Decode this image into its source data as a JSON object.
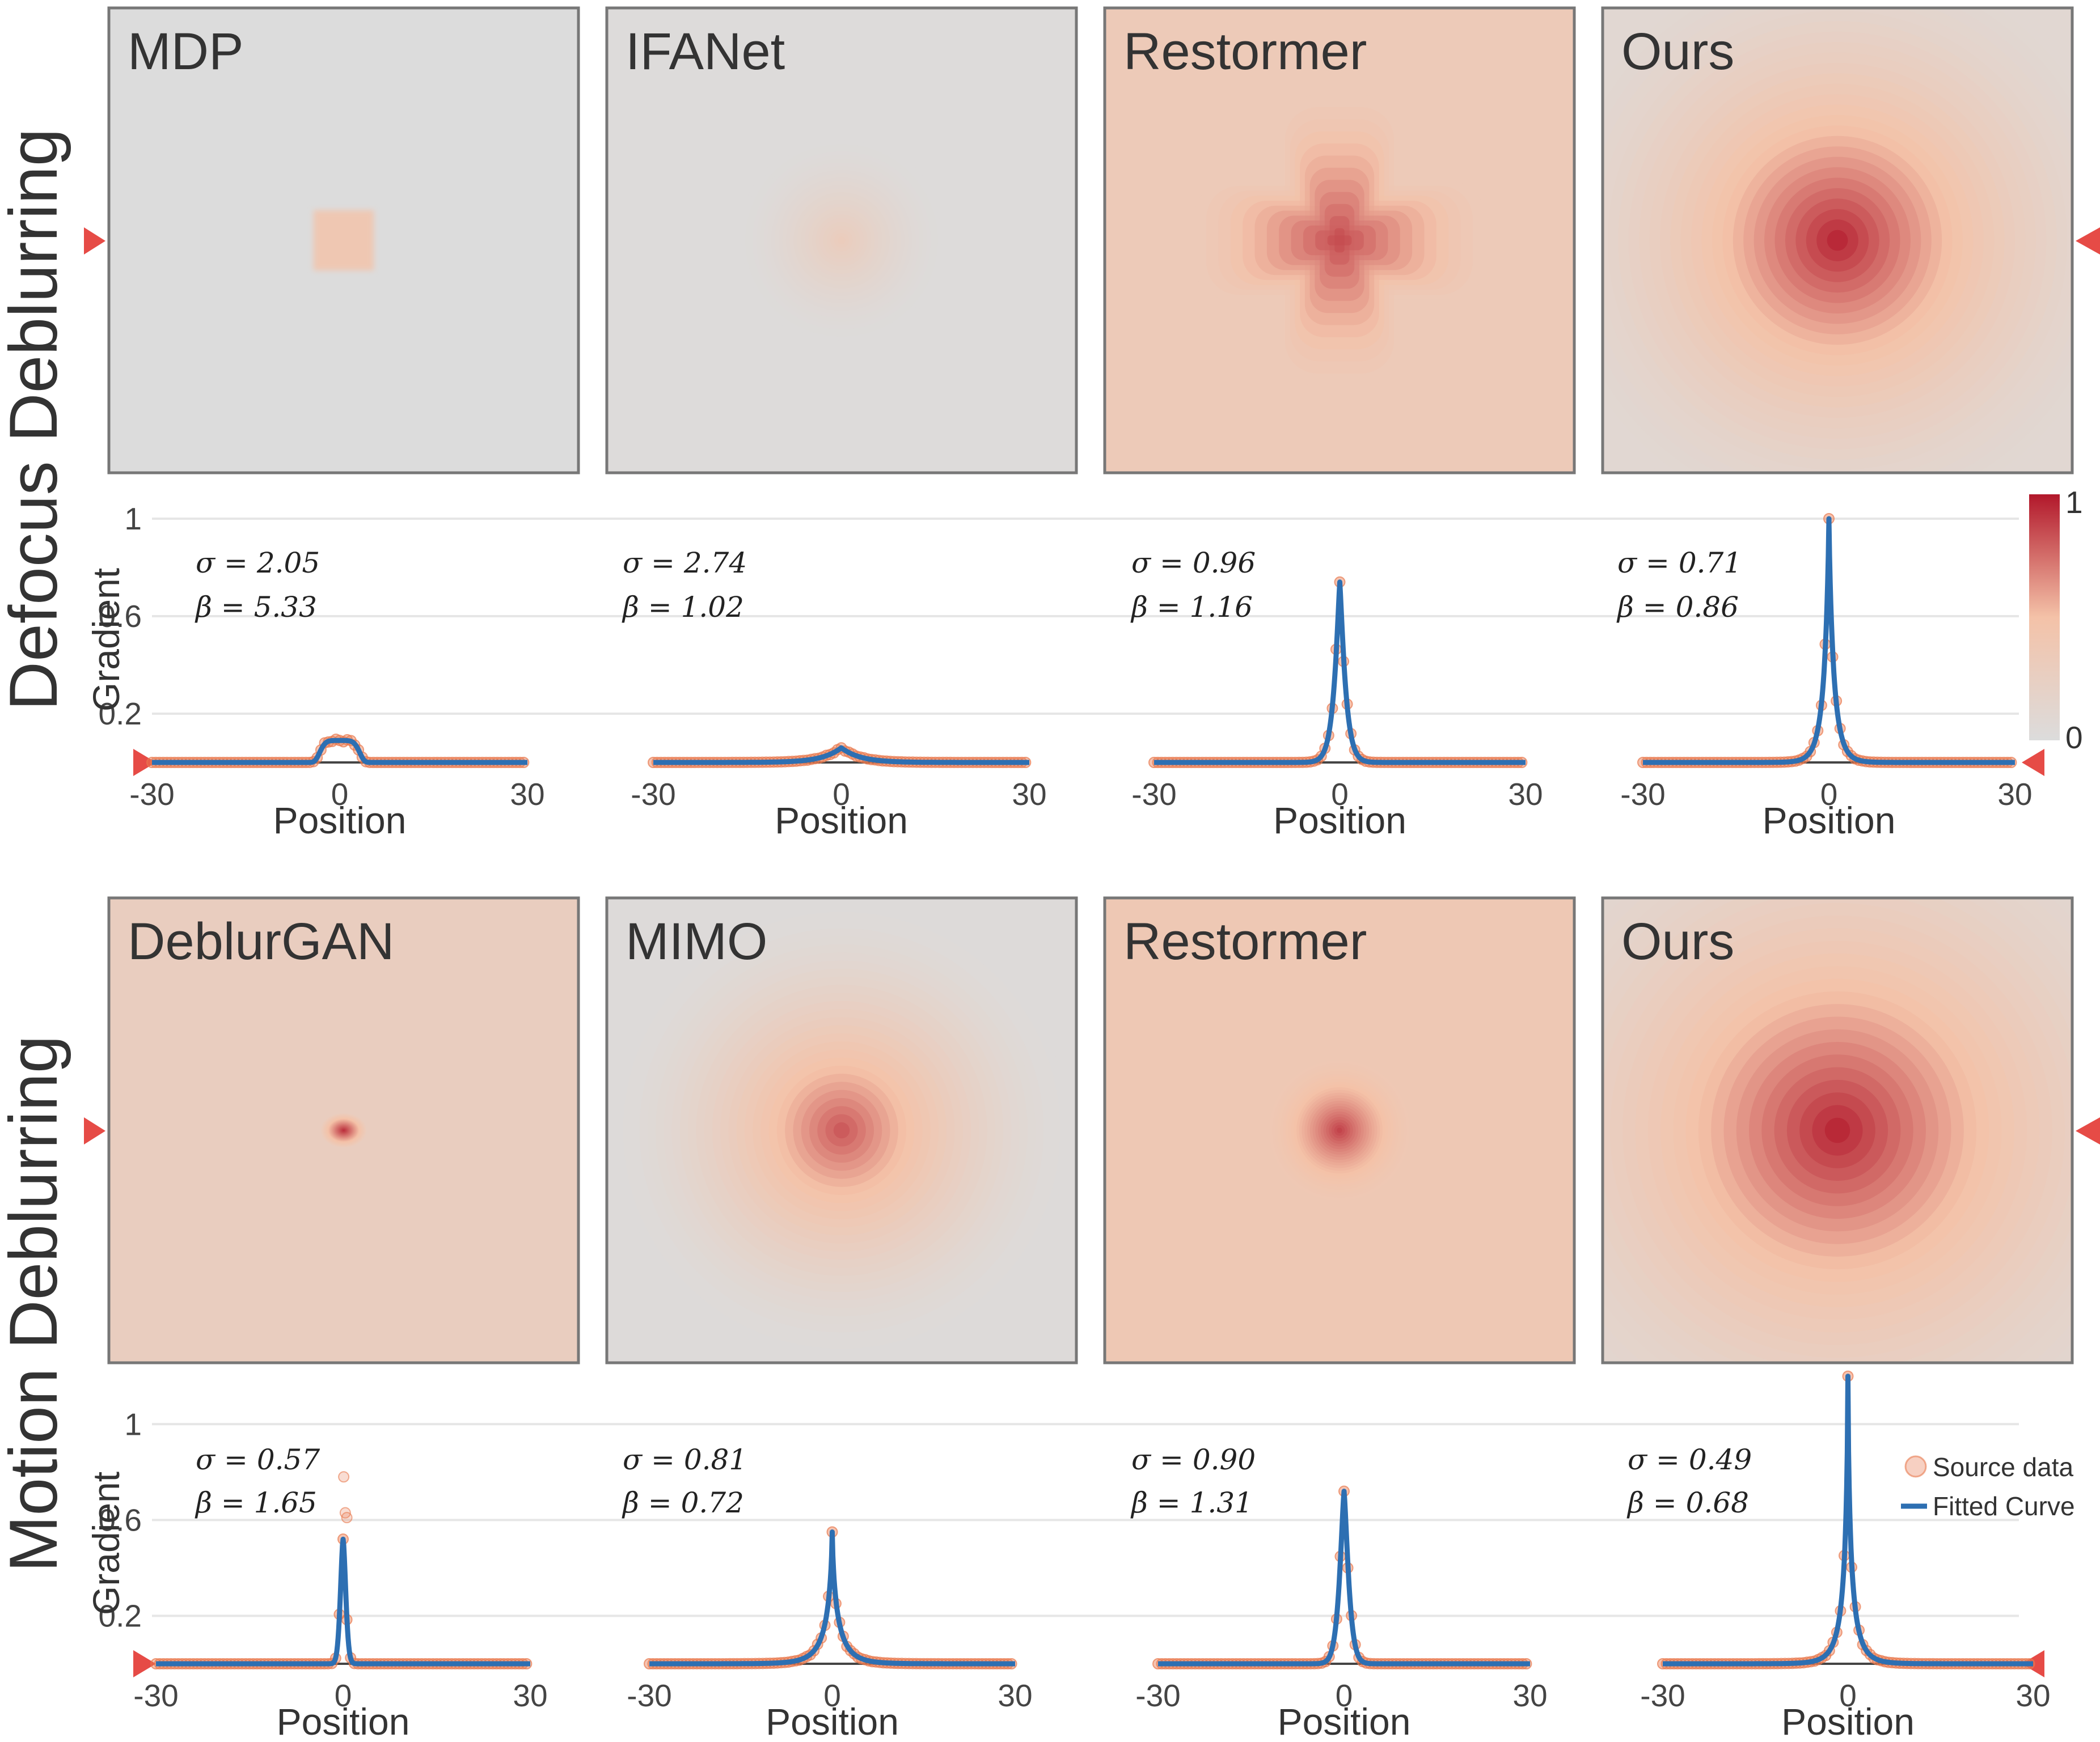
{
  "colors": {
    "map_low": "#dcdcdc",
    "map_mid": "#f4c2a8",
    "map_high": "#b2182b",
    "source_data": "#e8794f",
    "fitted_curve": "#2d6fb2",
    "marker": "#e64b46",
    "grid": "#e6e6e6",
    "axis": "#444444"
  },
  "colorbar": {
    "max_label": "1",
    "min_label": "0"
  },
  "legend": {
    "source_label": "Source data",
    "fitted_label": "Fitted Curve"
  },
  "chart_data": [
    {
      "type": "line",
      "section": "Defocus Deblurring",
      "ylabel": "Gradient",
      "xlabel": "Position",
      "xlim": [
        -30,
        30
      ],
      "ylim": [
        0,
        1.1
      ],
      "yticks": [
        "0.2",
        "0.6",
        "1"
      ],
      "xticks": [
        "-30",
        "0",
        "30"
      ],
      "panels": [
        {
          "method": "MDP",
          "sigma": "σ = 2.05",
          "beta": "β = 5.33",
          "sigma_val": 2.05,
          "beta_val": 5.33,
          "peak": 0.09,
          "map": {
            "kind": "square",
            "intensity": 0.4,
            "extent": 0.08,
            "bg": 0.0
          }
        },
        {
          "method": "IFANet",
          "sigma": "σ = 2.74",
          "beta": "β = 1.02",
          "sigma_val": 2.74,
          "beta_val": 1.02,
          "peak": 0.06,
          "map": {
            "kind": "radial",
            "intensity": 0.32,
            "extent": 0.22,
            "bg": 0.02
          }
        },
        {
          "method": "Restormer",
          "sigma": "σ = 0.96",
          "beta": "β = 1.16",
          "sigma_val": 0.96,
          "beta_val": 1.16,
          "peak": 0.74,
          "map": {
            "kind": "cross",
            "intensity": 0.9,
            "extent": 0.14,
            "bg": 0.35
          }
        },
        {
          "method": "Ours",
          "sigma": "σ = 0.71",
          "beta": "β = 0.86",
          "sigma_val": 0.71,
          "beta_val": 0.86,
          "peak": 1.0,
          "map": {
            "kind": "radial",
            "intensity": 1.0,
            "extent": 0.62,
            "bg": 0.1
          }
        }
      ]
    },
    {
      "type": "line",
      "section": "Motion Deblurring",
      "ylabel": "Gradient",
      "xlabel": "Position",
      "xlim": [
        -30,
        30
      ],
      "ylim": [
        0,
        1.1
      ],
      "yticks": [
        "0.2",
        "0.6",
        "1"
      ],
      "xticks": [
        "-30",
        "0",
        "30"
      ],
      "panels": [
        {
          "method": "DeblurGAN",
          "sigma": "σ = 0.57",
          "beta": "β = 1.65",
          "sigma_val": 0.57,
          "beta_val": 1.65,
          "peak": 0.52,
          "outliers": [
            0.78,
            0.63,
            0.61
          ],
          "map": {
            "kind": "dot",
            "intensity": 0.95,
            "extent": 0.05,
            "bg": 0.28
          }
        },
        {
          "method": "MIMO",
          "sigma": "σ = 0.81",
          "beta": "β = 0.72",
          "sigma_val": 0.81,
          "beta_val": 0.72,
          "peak": 0.55,
          "map": {
            "kind": "radial",
            "intensity": 0.85,
            "extent": 0.48,
            "bg": 0.03
          }
        },
        {
          "method": "Restormer",
          "sigma": "σ = 0.90",
          "beta": "β = 1.31",
          "sigma_val": 0.9,
          "beta_val": 1.31,
          "peak": 0.72,
          "map": {
            "kind": "radial",
            "intensity": 0.9,
            "extent": 0.16,
            "bg": 0.38
          }
        },
        {
          "method": "Ours",
          "sigma": "σ = 0.49",
          "beta": "β = 0.68",
          "sigma_val": 0.49,
          "beta_val": 0.68,
          "peak": 1.2,
          "map": {
            "kind": "radial",
            "intensity": 1.0,
            "extent": 0.75,
            "bg": 0.12
          }
        }
      ]
    }
  ]
}
